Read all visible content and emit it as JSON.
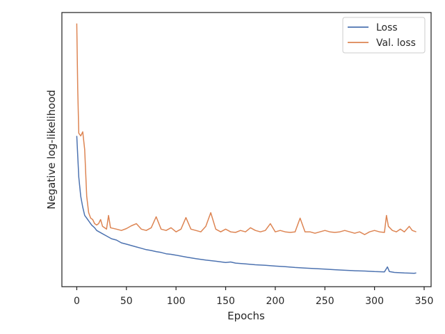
{
  "chart_data": {
    "type": "line",
    "title": "",
    "xlabel": "Epochs",
    "ylabel": "Negative log-likelihood",
    "xlim": [
      -15,
      357
    ],
    "ylim": [
      0,
      1
    ],
    "xticks": [
      "0",
      "50",
      "100",
      "150",
      "200",
      "250",
      "300",
      "350"
    ],
    "xtick_values": [
      0,
      50,
      100,
      150,
      200,
      250,
      300,
      350
    ],
    "y_tick_labels_shown": false,
    "grid": false,
    "legend": {
      "placement": "top-right"
    },
    "series": [
      {
        "name": "Loss",
        "color": "#4c72b0",
        "points": [
          [
            0,
            0.55
          ],
          [
            2,
            0.4
          ],
          [
            4,
            0.33
          ],
          [
            6,
            0.29
          ],
          [
            8,
            0.26
          ],
          [
            10,
            0.25
          ],
          [
            12,
            0.24
          ],
          [
            15,
            0.225
          ],
          [
            18,
            0.215
          ],
          [
            20,
            0.205
          ],
          [
            25,
            0.195
          ],
          [
            30,
            0.185
          ],
          [
            35,
            0.175
          ],
          [
            40,
            0.17
          ],
          [
            45,
            0.16
          ],
          [
            50,
            0.155
          ],
          [
            55,
            0.15
          ],
          [
            60,
            0.145
          ],
          [
            65,
            0.14
          ],
          [
            70,
            0.135
          ],
          [
            75,
            0.132
          ],
          [
            80,
            0.128
          ],
          [
            85,
            0.125
          ],
          [
            90,
            0.12
          ],
          [
            95,
            0.118
          ],
          [
            100,
            0.115
          ],
          [
            110,
            0.108
          ],
          [
            120,
            0.102
          ],
          [
            130,
            0.097
          ],
          [
            140,
            0.093
          ],
          [
            150,
            0.088
          ],
          [
            155,
            0.09
          ],
          [
            160,
            0.086
          ],
          [
            170,
            0.083
          ],
          [
            180,
            0.08
          ],
          [
            190,
            0.078
          ],
          [
            200,
            0.075
          ],
          [
            210,
            0.073
          ],
          [
            220,
            0.07
          ],
          [
            230,
            0.068
          ],
          [
            240,
            0.066
          ],
          [
            250,
            0.064
          ],
          [
            260,
            0.062
          ],
          [
            270,
            0.06
          ],
          [
            280,
            0.058
          ],
          [
            290,
            0.057
          ],
          [
            300,
            0.055
          ],
          [
            310,
            0.054
          ],
          [
            313,
            0.072
          ],
          [
            315,
            0.055
          ],
          [
            320,
            0.052
          ],
          [
            330,
            0.05
          ],
          [
            340,
            0.049
          ],
          [
            342,
            0.05
          ]
        ]
      },
      {
        "name": "Val. loss",
        "color": "#dd8452",
        "points": [
          [
            0,
            0.96
          ],
          [
            1,
            0.72
          ],
          [
            2,
            0.56
          ],
          [
            4,
            0.55
          ],
          [
            6,
            0.565
          ],
          [
            8,
            0.5
          ],
          [
            10,
            0.33
          ],
          [
            12,
            0.27
          ],
          [
            14,
            0.25
          ],
          [
            16,
            0.245
          ],
          [
            18,
            0.23
          ],
          [
            20,
            0.225
          ],
          [
            22,
            0.23
          ],
          [
            24,
            0.245
          ],
          [
            26,
            0.22
          ],
          [
            30,
            0.21
          ],
          [
            32,
            0.26
          ],
          [
            34,
            0.215
          ],
          [
            40,
            0.21
          ],
          [
            45,
            0.205
          ],
          [
            50,
            0.212
          ],
          [
            55,
            0.222
          ],
          [
            60,
            0.23
          ],
          [
            65,
            0.21
          ],
          [
            70,
            0.205
          ],
          [
            75,
            0.215
          ],
          [
            80,
            0.255
          ],
          [
            85,
            0.21
          ],
          [
            90,
            0.205
          ],
          [
            95,
            0.215
          ],
          [
            100,
            0.2
          ],
          [
            105,
            0.21
          ],
          [
            110,
            0.252
          ],
          [
            115,
            0.21
          ],
          [
            120,
            0.205
          ],
          [
            125,
            0.2
          ],
          [
            130,
            0.22
          ],
          [
            135,
            0.27
          ],
          [
            140,
            0.21
          ],
          [
            145,
            0.2
          ],
          [
            150,
            0.21
          ],
          [
            155,
            0.2
          ],
          [
            160,
            0.198
          ],
          [
            165,
            0.205
          ],
          [
            170,
            0.2
          ],
          [
            175,
            0.215
          ],
          [
            180,
            0.205
          ],
          [
            185,
            0.2
          ],
          [
            190,
            0.205
          ],
          [
            195,
            0.23
          ],
          [
            200,
            0.2
          ],
          [
            205,
            0.205
          ],
          [
            210,
            0.2
          ],
          [
            215,
            0.198
          ],
          [
            220,
            0.2
          ],
          [
            225,
            0.25
          ],
          [
            230,
            0.2
          ],
          [
            235,
            0.2
          ],
          [
            240,
            0.195
          ],
          [
            245,
            0.2
          ],
          [
            250,
            0.205
          ],
          [
            255,
            0.2
          ],
          [
            260,
            0.198
          ],
          [
            265,
            0.2
          ],
          [
            270,
            0.205
          ],
          [
            275,
            0.2
          ],
          [
            280,
            0.195
          ],
          [
            285,
            0.2
          ],
          [
            290,
            0.19
          ],
          [
            295,
            0.2
          ],
          [
            300,
            0.205
          ],
          [
            305,
            0.2
          ],
          [
            310,
            0.198
          ],
          [
            312,
            0.26
          ],
          [
            314,
            0.22
          ],
          [
            318,
            0.205
          ],
          [
            322,
            0.2
          ],
          [
            326,
            0.21
          ],
          [
            330,
            0.2
          ],
          [
            335,
            0.22
          ],
          [
            338,
            0.205
          ],
          [
            342,
            0.2
          ]
        ]
      }
    ]
  }
}
